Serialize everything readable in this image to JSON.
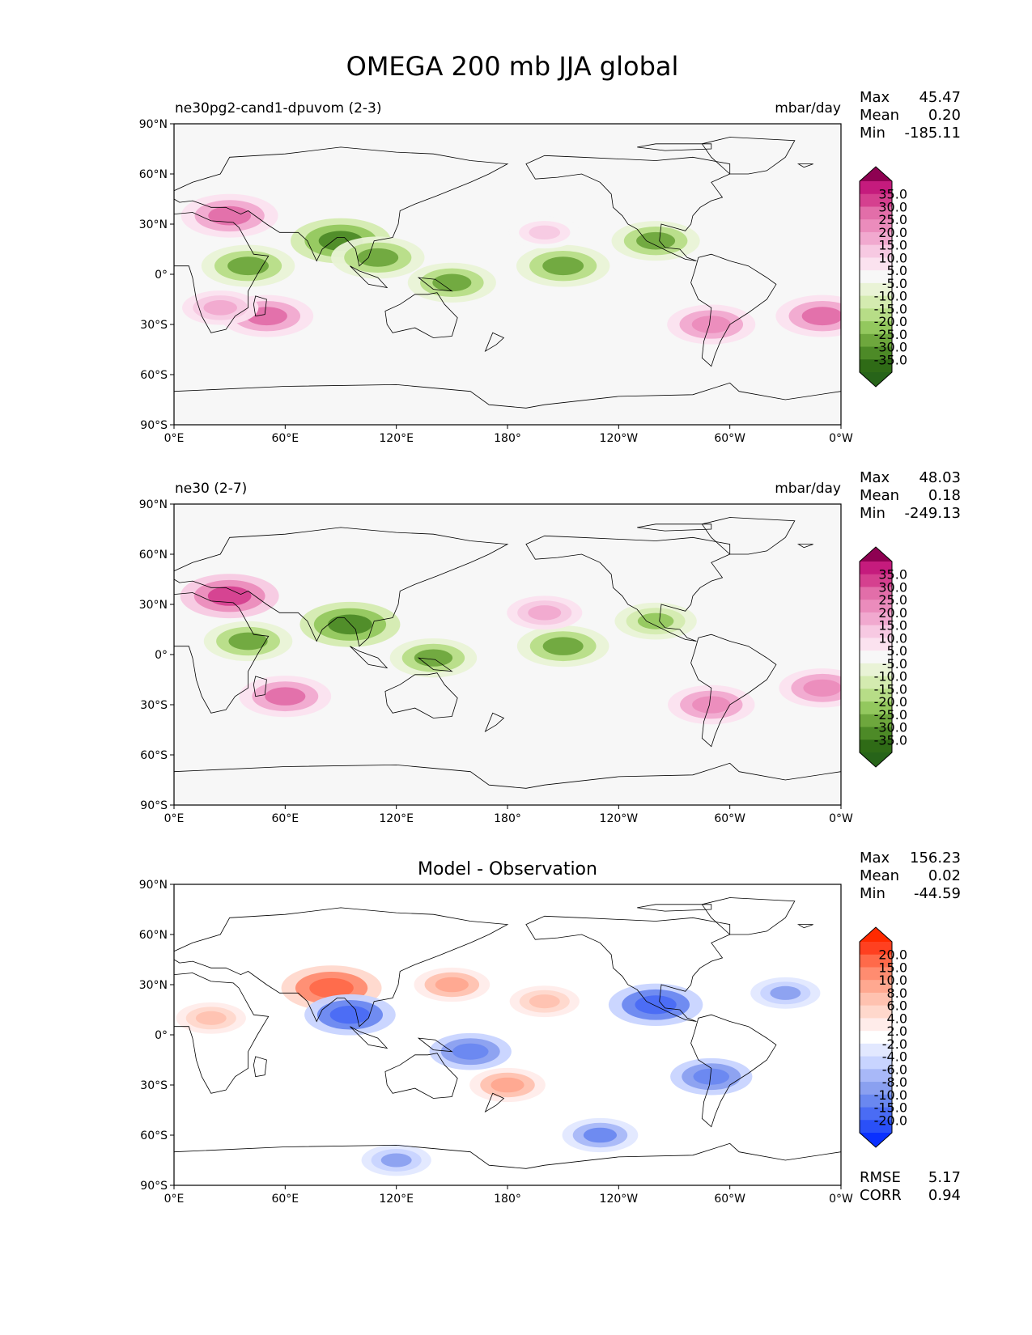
{
  "figure": {
    "title": "OMEGA 200 mb JJA global"
  },
  "chart_data": [
    {
      "type": "heatmap",
      "panel_id": "p1",
      "title": "",
      "left_label": "ne30pg2-cand1-dpuvom (2-3)",
      "units": "mbar/day",
      "stats": {
        "max_label": "Max",
        "max": "45.47",
        "mean_label": "Mean",
        "mean": "0.20",
        "min_label": "Min",
        "min": "-185.11"
      },
      "colorbar": {
        "labels": [
          "35.0",
          "30.0",
          "25.0",
          "20.0",
          "15.0",
          "10.0",
          "5.0",
          "-5.0",
          "-10.0",
          "-15.0",
          "-20.0",
          "-25.0",
          "-30.0",
          "-35.0"
        ],
        "colors": [
          "#c51b7d",
          "#d5408f",
          "#e26ea9",
          "#eb8cbc",
          "#f1a9cf",
          "#f7c9e2",
          "#fbe2ef",
          "#f7f7f7",
          "#e9f3d6",
          "#d4ebb0",
          "#b7dd87",
          "#93c85e",
          "#6ea73d",
          "#4d8a27",
          "#2f6b16"
        ],
        "over_color": "#8e0152",
        "under_color": "#276419"
      },
      "x_ticks": [
        "0°E",
        "60°E",
        "120°E",
        "180°",
        "120°W",
        "60°W",
        "0°W"
      ],
      "y_ticks": [
        "90°N",
        "60°N",
        "30°N",
        "0°",
        "30°S",
        "60°S",
        "90°S"
      ],
      "xlim": [
        0,
        360
      ],
      "ylim": [
        -90,
        90
      ],
      "features": [
        {
          "lon": 30,
          "lat": 35,
          "value": 30
        },
        {
          "lon": 50,
          "lat": -25,
          "value": 28
        },
        {
          "lon": 25,
          "lat": -20,
          "value": 18
        },
        {
          "lon": 350,
          "lat": -25,
          "value": 28
        },
        {
          "lon": 210,
          "lat": 5,
          "value": -28
        },
        {
          "lon": 260,
          "lat": 20,
          "value": -25
        },
        {
          "lon": 90,
          "lat": 20,
          "value": -32
        },
        {
          "lon": 110,
          "lat": 10,
          "value": -28
        },
        {
          "lon": 290,
          "lat": -30,
          "value": 25
        },
        {
          "lon": 200,
          "lat": 25,
          "value": 15
        },
        {
          "lon": 150,
          "lat": -5,
          "value": -25
        },
        {
          "lon": 40,
          "lat": 5,
          "value": -28
        }
      ]
    },
    {
      "type": "heatmap",
      "panel_id": "p2",
      "title": "",
      "left_label": "ne30 (2-7)",
      "units": "mbar/day",
      "stats": {
        "max_label": "Max",
        "max": "48.03",
        "mean_label": "Mean",
        "mean": "0.18",
        "min_label": "Min",
        "min": "-249.13"
      },
      "colorbar": {
        "labels": [
          "35.0",
          "30.0",
          "25.0",
          "20.0",
          "15.0",
          "10.0",
          "5.0",
          "-5.0",
          "-10.0",
          "-15.0",
          "-20.0",
          "-25.0",
          "-30.0",
          "-35.0"
        ],
        "colors": [
          "#c51b7d",
          "#d5408f",
          "#e26ea9",
          "#eb8cbc",
          "#f1a9cf",
          "#f7c9e2",
          "#fbe2ef",
          "#f7f7f7",
          "#e9f3d6",
          "#d4ebb0",
          "#b7dd87",
          "#93c85e",
          "#6ea73d",
          "#4d8a27",
          "#2f6b16"
        ],
        "over_color": "#8e0152",
        "under_color": "#276419"
      },
      "x_ticks": [
        "0°E",
        "60°E",
        "120°E",
        "180°",
        "120°W",
        "60°W",
        "0°W"
      ],
      "y_ticks": [
        "90°N",
        "60°N",
        "30°N",
        "0°",
        "30°S",
        "60°S",
        "90°S"
      ],
      "xlim": [
        0,
        360
      ],
      "ylim": [
        -90,
        90
      ],
      "features": [
        {
          "lon": 30,
          "lat": 35,
          "value": 32
        },
        {
          "lon": 60,
          "lat": -25,
          "value": 28
        },
        {
          "lon": 350,
          "lat": -20,
          "value": 25
        },
        {
          "lon": 210,
          "lat": 5,
          "value": -28
        },
        {
          "lon": 260,
          "lat": 20,
          "value": -22
        },
        {
          "lon": 95,
          "lat": 18,
          "value": -33
        },
        {
          "lon": 290,
          "lat": -30,
          "value": 25
        },
        {
          "lon": 200,
          "lat": 25,
          "value": 18
        },
        {
          "lon": 140,
          "lat": -2,
          "value": -25
        },
        {
          "lon": 40,
          "lat": 8,
          "value": -26
        }
      ]
    },
    {
      "type": "heatmap",
      "panel_id": "p3",
      "title": "Model - Observation",
      "left_label": "",
      "units": "",
      "stats": {
        "max_label": "Max",
        "max": "156.23",
        "mean_label": "Mean",
        "mean": "0.02",
        "min_label": "Min",
        "min": "-44.59"
      },
      "extra_stats": {
        "rmse_label": "RMSE",
        "rmse": "5.17",
        "corr_label": "CORR",
        "corr": "0.94"
      },
      "colorbar": {
        "labels": [
          "20.0",
          "15.0",
          "10.0",
          "8.0",
          "6.0",
          "4.0",
          "2.0",
          "-2.0",
          "-4.0",
          "-6.0",
          "-8.0",
          "-10.0",
          "-15.0",
          "-20.0"
        ],
        "colors": [
          "#ff4020",
          "#ff6a4a",
          "#ff8c70",
          "#ffa890",
          "#ffc2b0",
          "#ffd8cc",
          "#ffecea",
          "#ffffff",
          "#e2e8ff",
          "#c8d4ff",
          "#a8b8f8",
          "#8aa0f0",
          "#6a88f0",
          "#4a6cf4",
          "#2a50f8"
        ],
        "over_color": "#ff2a00",
        "under_color": "#0a30ff"
      },
      "x_ticks": [
        "0°E",
        "60°E",
        "120°E",
        "180°",
        "120°W",
        "60°W",
        "0°W"
      ],
      "y_ticks": [
        "90°N",
        "60°N",
        "30°N",
        "0°",
        "30°S",
        "60°S",
        "90°S"
      ],
      "xlim": [
        0,
        360
      ],
      "ylim": [
        -90,
        90
      ],
      "features": [
        {
          "lon": 85,
          "lat": 28,
          "value": 18
        },
        {
          "lon": 95,
          "lat": 12,
          "value": -15
        },
        {
          "lon": 260,
          "lat": 18,
          "value": -16
        },
        {
          "lon": 180,
          "lat": -30,
          "value": 10
        },
        {
          "lon": 290,
          "lat": -25,
          "value": -12
        },
        {
          "lon": 150,
          "lat": 30,
          "value": 10
        },
        {
          "lon": 160,
          "lat": -10,
          "value": -12
        },
        {
          "lon": 230,
          "lat": -60,
          "value": -10
        },
        {
          "lon": 20,
          "lat": 10,
          "value": 8
        },
        {
          "lon": 200,
          "lat": 20,
          "value": 8
        },
        {
          "lon": 330,
          "lat": 25,
          "value": -8
        },
        {
          "lon": 120,
          "lat": -75,
          "value": -8
        }
      ]
    }
  ]
}
